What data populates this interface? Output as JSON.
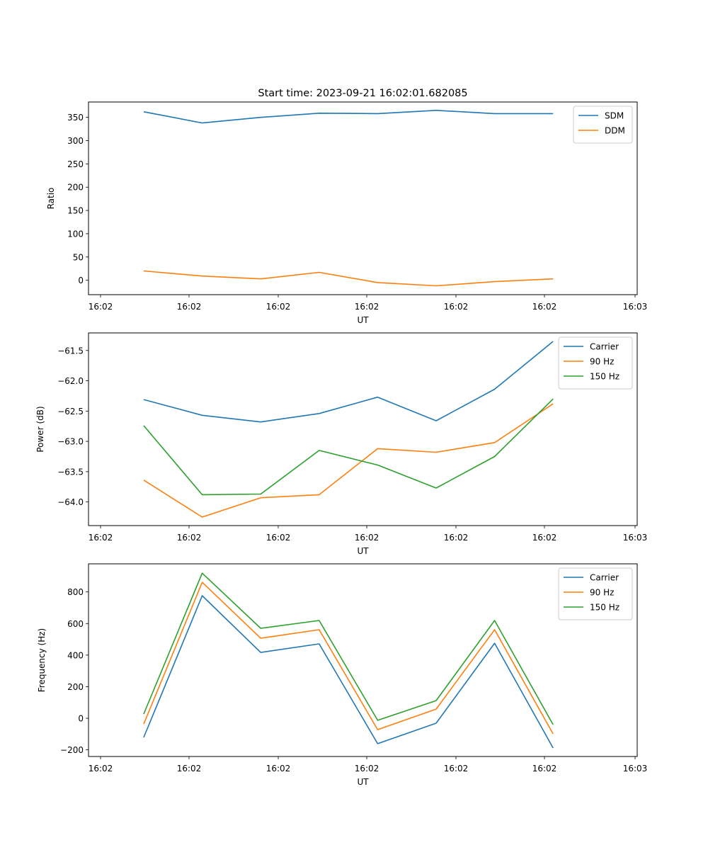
{
  "figure_title": "Start time: 2023-09-21 16:02:01.682085",
  "colors": {
    "blue": "#1f77b4",
    "orange": "#ff7f0e",
    "green": "#2ca02c"
  },
  "chart_data": [
    {
      "type": "line",
      "title": "Start time: 2023-09-21 16:02:01.682085",
      "xlabel": "UT",
      "ylabel": "Ratio",
      "xticks": [
        "16:02",
        "16:02",
        "16:02",
        "16:02",
        "16:02",
        "16:02",
        "16:03"
      ],
      "yticks": [
        0,
        50,
        100,
        150,
        200,
        250,
        300,
        350
      ],
      "ylim": [
        -31,
        383
      ],
      "grid": false,
      "legend": "top-right",
      "x_index": [
        1,
        2,
        3,
        4,
        5,
        6,
        7,
        8
      ],
      "series": [
        {
          "name": "SDM",
          "color": "#1f77b4",
          "values": [
            362,
            338,
            350,
            359,
            358,
            365,
            358,
            358
          ]
        },
        {
          "name": "DDM",
          "color": "#ff7f0e",
          "values": [
            20,
            9,
            3,
            17,
            -5,
            -12,
            -3,
            3
          ]
        }
      ]
    },
    {
      "type": "line",
      "title": "",
      "xlabel": "UT",
      "ylabel": "Power (dB)",
      "xticks": [
        "16:02",
        "16:02",
        "16:02",
        "16:02",
        "16:02",
        "16:02",
        "16:03"
      ],
      "yticks": [
        -64.0,
        -63.5,
        -63.0,
        -62.5,
        -62.0,
        -61.5
      ],
      "ytick_labels": [
        "−64.0",
        "−63.5",
        "−63.0",
        "−62.5",
        "−62.0",
        "−61.5"
      ],
      "ylim": [
        -64.39,
        -61.21
      ],
      "grid": false,
      "legend": "top-right",
      "x_index": [
        1,
        2,
        3,
        4,
        5,
        6,
        7,
        8
      ],
      "series": [
        {
          "name": "Carrier",
          "color": "#1f77b4",
          "values": [
            -62.31,
            -62.57,
            -62.68,
            -62.54,
            -62.27,
            -62.66,
            -62.14,
            -61.35
          ]
        },
        {
          "name": "90 Hz",
          "color": "#ff7f0e",
          "values": [
            -63.64,
            -64.25,
            -63.93,
            -63.88,
            -63.12,
            -63.18,
            -63.02,
            -62.38
          ]
        },
        {
          "name": "150 Hz",
          "color": "#2ca02c",
          "values": [
            -62.74,
            -63.88,
            -63.87,
            -63.15,
            -63.39,
            -63.77,
            -63.25,
            -62.3
          ]
        }
      ]
    },
    {
      "type": "line",
      "title": "",
      "xlabel": "UT",
      "ylabel": "Frequency (Hz)",
      "xticks": [
        "16:02",
        "16:02",
        "16:02",
        "16:02",
        "16:02",
        "16:02",
        "16:03"
      ],
      "yticks": [
        -200,
        0,
        200,
        400,
        600,
        800
      ],
      "ytick_labels": [
        "−200",
        "0",
        "200",
        "400",
        "600",
        "800"
      ],
      "ylim": [
        -242,
        978
      ],
      "grid": false,
      "legend": "top-right",
      "x_index": [
        1,
        2,
        3,
        4,
        5,
        6,
        7,
        8
      ],
      "series": [
        {
          "name": "Carrier",
          "color": "#1f77b4",
          "values": [
            -121,
            776,
            417,
            471,
            -161,
            -31,
            475,
            -188
          ]
        },
        {
          "name": "90 Hz",
          "color": "#ff7f0e",
          "values": [
            -36,
            861,
            507,
            561,
            -72,
            58,
            561,
            -99
          ]
        },
        {
          "name": "150 Hz",
          "color": "#2ca02c",
          "values": [
            27,
            919,
            570,
            619,
            -13,
            112,
            619,
            -40
          ]
        }
      ]
    }
  ]
}
